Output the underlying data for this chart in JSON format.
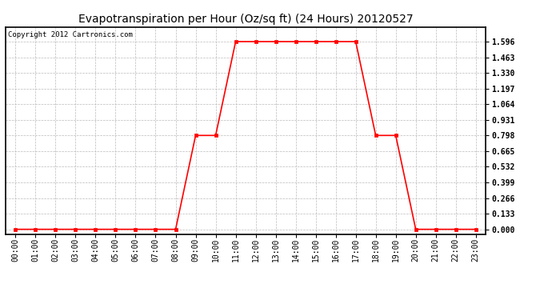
{
  "title": "Evapotranspiration per Hour (Oz/sq ft) (24 Hours) 20120527",
  "copyright": "Copyright 2012 Cartronics.com",
  "hours": [
    0,
    1,
    2,
    3,
    4,
    5,
    6,
    7,
    8,
    9,
    10,
    11,
    12,
    13,
    14,
    15,
    16,
    17,
    18,
    19,
    20,
    21,
    22,
    23
  ],
  "values": [
    0.0,
    0.0,
    0.0,
    0.0,
    0.0,
    0.0,
    0.0,
    0.0,
    0.0,
    0.798,
    0.798,
    1.596,
    1.596,
    1.596,
    1.596,
    1.596,
    1.596,
    1.596,
    0.798,
    0.798,
    0.0,
    0.0,
    0.0,
    0.0
  ],
  "hour_labels": [
    "00:00",
    "01:00",
    "02:00",
    "03:00",
    "04:00",
    "05:00",
    "06:00",
    "07:00",
    "08:00",
    "09:00",
    "10:00",
    "11:00",
    "12:00",
    "13:00",
    "14:00",
    "15:00",
    "16:00",
    "17:00",
    "18:00",
    "19:00",
    "20:00",
    "21:00",
    "22:00",
    "23:00"
  ],
  "yticks": [
    0.0,
    0.133,
    0.266,
    0.399,
    0.532,
    0.665,
    0.798,
    0.931,
    1.064,
    1.197,
    1.33,
    1.463,
    1.596
  ],
  "line_color": "#ff0000",
  "marker": "s",
  "marker_size": 3,
  "line_width": 1.2,
  "bg_color": "#ffffff",
  "plot_bg_color": "#ffffff",
  "grid_color": "#bbbbbb",
  "grid_style": "--",
  "title_fontsize": 10,
  "tick_fontsize": 7,
  "copyright_fontsize": 6.5,
  "ylim": [
    -0.04,
    1.72
  ],
  "xlim": [
    -0.5,
    23.5
  ],
  "copyright_color": "#000000",
  "title_color": "#000000"
}
